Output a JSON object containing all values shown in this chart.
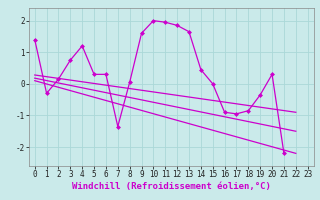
{
  "background_color": "#caeaea",
  "line_color": "#cc00cc",
  "grid_color": "#aad8d8",
  "xlabel": "Windchill (Refroidissement éolien,°C)",
  "xlabel_color": "#cc00cc",
  "ylabel_ticks": [
    -2,
    -1,
    0,
    1,
    2
  ],
  "xticks": [
    0,
    1,
    2,
    3,
    4,
    5,
    6,
    7,
    8,
    9,
    10,
    11,
    12,
    13,
    14,
    15,
    16,
    17,
    18,
    19,
    20,
    21,
    22,
    23
  ],
  "xlim": [
    -0.5,
    23.5
  ],
  "ylim": [
    -2.6,
    2.4
  ],
  "line_full_x": [
    0,
    1,
    2,
    3,
    4,
    5,
    6,
    7,
    8,
    9,
    10,
    11,
    12,
    13,
    14,
    15,
    16,
    17,
    18,
    19,
    20,
    21,
    22
  ],
  "line_full_y": [
    1.4,
    -0.3,
    0.15,
    0.75,
    1.2,
    0.3,
    0.3,
    -1.35,
    0.05,
    1.6,
    2.0,
    1.95,
    1.85,
    1.65,
    0.45,
    0.0,
    -0.9,
    -0.95,
    -0.85,
    -0.35,
    0.3,
    -2.2,
    -2.2
  ],
  "trend1_x": [
    0,
    22
  ],
  "trend1_y": [
    0.28,
    -0.9
  ],
  "trend2_x": [
    0,
    22
  ],
  "trend2_y": [
    0.18,
    -1.5
  ],
  "trend3_x": [
    0,
    22
  ],
  "trend3_y": [
    0.1,
    -2.2
  ],
  "marker_size": 2.5,
  "tick_fontsize": 5.5,
  "xlabel_fontsize": 6.5,
  "lw": 0.9
}
